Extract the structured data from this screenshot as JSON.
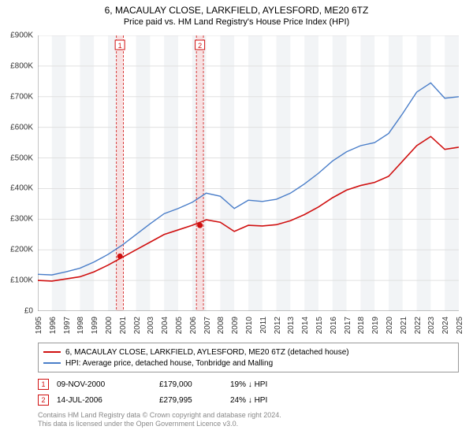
{
  "title": "6, MACAULAY CLOSE, LARKFIELD, AYLESFORD, ME20 6TZ",
  "subtitle": "Price paid vs. HM Land Registry's House Price Index (HPI)",
  "chart": {
    "type": "line",
    "background_color": "#ffffff",
    "grid_color": "#e0e0e0",
    "alt_band_color": "#f2f4f6",
    "axis_color": "#888888",
    "ylim": [
      0,
      900
    ],
    "ytick_step": 100,
    "y_unit_prefix": "£",
    "y_unit_suffix": "K",
    "x_min": 1995,
    "x_max": 2025,
    "x_ticks": [
      1995,
      1996,
      1997,
      1998,
      1999,
      2000,
      2001,
      2002,
      2003,
      2004,
      2005,
      2006,
      2007,
      2008,
      2009,
      2010,
      2011,
      2012,
      2013,
      2014,
      2015,
      2016,
      2017,
      2018,
      2019,
      2020,
      2021,
      2022,
      2023,
      2024,
      2025
    ],
    "series": [
      {
        "name": "6, MACAULAY CLOSE, LARKFIELD, AYLESFORD, ME20 6TZ (detached house)",
        "color": "#d01010",
        "line_width": 1.6,
        "data": [
          [
            1995,
            100
          ],
          [
            1996,
            98
          ],
          [
            1997,
            105
          ],
          [
            1998,
            112
          ],
          [
            1999,
            128
          ],
          [
            2000,
            150
          ],
          [
            2001,
            175
          ],
          [
            2002,
            200
          ],
          [
            2003,
            225
          ],
          [
            2004,
            250
          ],
          [
            2005,
            265
          ],
          [
            2006,
            280
          ],
          [
            2007,
            298
          ],
          [
            2008,
            290
          ],
          [
            2009,
            260
          ],
          [
            2010,
            280
          ],
          [
            2011,
            278
          ],
          [
            2012,
            282
          ],
          [
            2013,
            295
          ],
          [
            2014,
            315
          ],
          [
            2015,
            340
          ],
          [
            2016,
            370
          ],
          [
            2017,
            395
          ],
          [
            2018,
            410
          ],
          [
            2019,
            420
          ],
          [
            2020,
            440
          ],
          [
            2021,
            490
          ],
          [
            2022,
            540
          ],
          [
            2023,
            570
          ],
          [
            2024,
            528
          ],
          [
            2025,
            535
          ]
        ]
      },
      {
        "name": "HPI: Average price, detached house, Tonbridge and Malling",
        "color": "#4a7ec9",
        "line_width": 1.4,
        "data": [
          [
            1995,
            120
          ],
          [
            1996,
            118
          ],
          [
            1997,
            128
          ],
          [
            1998,
            140
          ],
          [
            1999,
            160
          ],
          [
            2000,
            185
          ],
          [
            2001,
            215
          ],
          [
            2002,
            250
          ],
          [
            2003,
            285
          ],
          [
            2004,
            318
          ],
          [
            2005,
            335
          ],
          [
            2006,
            355
          ],
          [
            2007,
            385
          ],
          [
            2008,
            375
          ],
          [
            2009,
            335
          ],
          [
            2010,
            362
          ],
          [
            2011,
            358
          ],
          [
            2012,
            365
          ],
          [
            2013,
            385
          ],
          [
            2014,
            415
          ],
          [
            2015,
            450
          ],
          [
            2016,
            490
          ],
          [
            2017,
            520
          ],
          [
            2018,
            540
          ],
          [
            2019,
            550
          ],
          [
            2020,
            580
          ],
          [
            2021,
            645
          ],
          [
            2022,
            715
          ],
          [
            2023,
            745
          ],
          [
            2024,
            695
          ],
          [
            2025,
            700
          ]
        ]
      }
    ],
    "markers": [
      {
        "id": "1",
        "x": 2000.85,
        "y": 179,
        "band_start": 2000.6,
        "band_end": 2001.1,
        "color": "#d01010",
        "band_color": "#f9d6d6",
        "date": "09-NOV-2000",
        "price": "£179,000",
        "desc": "19% ↓ HPI"
      },
      {
        "id": "2",
        "x": 2006.55,
        "y": 280,
        "band_start": 2006.3,
        "band_end": 2006.8,
        "color": "#d01010",
        "band_color": "#f9d6d6",
        "date": "14-JUL-2006",
        "price": "£279,995",
        "desc": "24% ↓ HPI"
      }
    ]
  },
  "legend": {
    "series1_label": "6, MACAULAY CLOSE, LARKFIELD, AYLESFORD, ME20 6TZ (detached house)",
    "series2_label": "HPI: Average price, detached house, Tonbridge and Malling"
  },
  "footer": {
    "line1": "Contains HM Land Registry data © Crown copyright and database right 2024.",
    "line2": "This data is licensed under the Open Government Licence v3.0."
  }
}
